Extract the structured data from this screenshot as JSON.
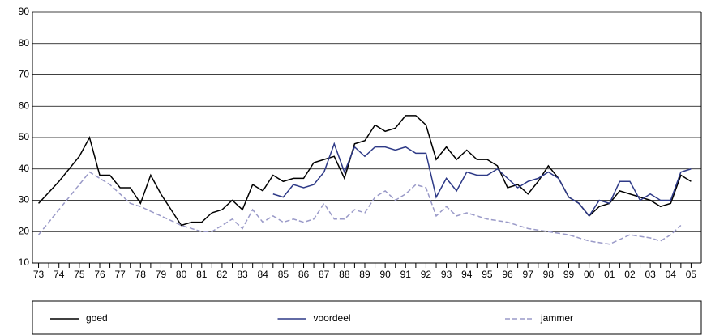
{
  "chart_data": {
    "type": "line",
    "xlim": [
      1972.7,
      2005.5
    ],
    "xticks": [
      {
        "value": 1973,
        "label": "73"
      },
      {
        "value": 1974,
        "label": "74"
      },
      {
        "value": 1975,
        "label": "75"
      },
      {
        "value": 1976,
        "label": "76"
      },
      {
        "value": 1977,
        "label": "77"
      },
      {
        "value": 1978,
        "label": "78"
      },
      {
        "value": 1979,
        "label": "79"
      },
      {
        "value": 1980,
        "label": "80"
      },
      {
        "value": 1981,
        "label": "81"
      },
      {
        "value": 1982,
        "label": "82"
      },
      {
        "value": 1983,
        "label": "83"
      },
      {
        "value": 1984,
        "label": "84"
      },
      {
        "value": 1985,
        "label": "85"
      },
      {
        "value": 1986,
        "label": "86"
      },
      {
        "value": 1987,
        "label": "87"
      },
      {
        "value": 1988,
        "label": "88"
      },
      {
        "value": 1989,
        "label": "89"
      },
      {
        "value": 1990,
        "label": "90"
      },
      {
        "value": 1991,
        "label": "91"
      },
      {
        "value": 1992,
        "label": "92"
      },
      {
        "value": 1993,
        "label": "93"
      },
      {
        "value": 1994,
        "label": "94"
      },
      {
        "value": 1995,
        "label": "95"
      },
      {
        "value": 1996,
        "label": "96"
      },
      {
        "value": 1997,
        "label": "97"
      },
      {
        "value": 1998,
        "label": "98"
      },
      {
        "value": 1999,
        "label": "99"
      },
      {
        "value": 2000,
        "label": "00"
      },
      {
        "value": 2001,
        "label": "01"
      },
      {
        "value": 2002,
        "label": "02"
      },
      {
        "value": 2003,
        "label": "03"
      },
      {
        "value": 2004,
        "label": "04"
      },
      {
        "value": 2005,
        "label": "05"
      }
    ],
    "ylim": [
      10,
      90
    ],
    "yticks": [
      10,
      20,
      30,
      40,
      50,
      60,
      70,
      80,
      90
    ],
    "grid": true,
    "legend": "bottom",
    "series": [
      {
        "name": "goed",
        "color": "#000000",
        "dashed": false,
        "x": [
          1973,
          1974,
          1975,
          1975.5,
          1976,
          1976.5,
          1977,
          1977.5,
          1978,
          1978.5,
          1979,
          1980,
          1980.5,
          1981,
          1981.5,
          1982,
          1982.5,
          1983,
          1983.5,
          1984,
          1984.5,
          1985,
          1985.5,
          1986,
          1986.5,
          1987,
          1987.5,
          1988,
          1988.5,
          1989,
          1989.5,
          1990,
          1990.5,
          1991,
          1991.5,
          1992,
          1992.5,
          1993,
          1993.5,
          1994,
          1994.5,
          1995,
          1995.5,
          1996,
          1996.5,
          1997,
          1997.5,
          1998,
          1998.5,
          1999,
          1999.5,
          2000,
          2000.5,
          2001,
          2001.5,
          2002,
          2002.5,
          2003,
          2003.5,
          2004,
          2004.5,
          2005
        ],
        "values": [
          29,
          36,
          44,
          50,
          38,
          38,
          34,
          34,
          29,
          38,
          32,
          22,
          23,
          23,
          26,
          27,
          30,
          27,
          35,
          33,
          38,
          36,
          37,
          37,
          42,
          43,
          44,
          37,
          48,
          49,
          54,
          52,
          53,
          57,
          57,
          54,
          43,
          47,
          43,
          46,
          43,
          43,
          41,
          34,
          35,
          32,
          36,
          41,
          37,
          31,
          29,
          25,
          28,
          29,
          33,
          32,
          31,
          30,
          28,
          29,
          38,
          36
        ]
      },
      {
        "name": "voordeel",
        "color": "#2e3a87",
        "dashed": false,
        "x": [
          1984.5,
          1985,
          1985.5,
          1986,
          1986.5,
          1987,
          1987.5,
          1988,
          1988.5,
          1989,
          1989.5,
          1990,
          1990.5,
          1991,
          1991.5,
          1992,
          1992.5,
          1993,
          1993.5,
          1994,
          1994.5,
          1995,
          1995.5,
          1996,
          1996.5,
          1997,
          1997.5,
          1998,
          1998.5,
          1999,
          1999.5,
          2000,
          2000.5,
          2001,
          2001.5,
          2002,
          2002.5,
          2003,
          2003.5,
          2004,
          2004.5,
          2005
        ],
        "values": [
          32,
          31,
          35,
          34,
          35,
          39,
          48,
          39,
          47,
          44,
          47,
          47,
          46,
          47,
          45,
          45,
          31,
          37,
          33,
          39,
          38,
          38,
          40,
          37,
          34,
          36,
          37,
          39,
          37,
          31,
          29,
          25,
          30,
          29,
          36,
          36,
          30,
          32,
          30,
          30,
          39,
          40
        ]
      },
      {
        "name": "jammer",
        "color": "#9a9ac8",
        "dashed": true,
        "x": [
          1973,
          1975.5,
          1976.5,
          1977.5,
          1978,
          1979,
          1980,
          1981,
          1981.5,
          1982,
          1982.5,
          1983,
          1983.5,
          1984,
          1984.5,
          1985,
          1985.5,
          1986,
          1986.5,
          1987,
          1987.5,
          1988,
          1988.5,
          1989,
          1989.5,
          1990,
          1990.5,
          1991,
          1991.5,
          1992,
          1992.5,
          1993,
          1993.5,
          1994,
          1995,
          1996,
          1997,
          1998,
          1999,
          2000,
          2001,
          2002,
          2003,
          2003.5,
          2004,
          2004.5
        ],
        "values": [
          19,
          39,
          35,
          29,
          28,
          25,
          22,
          20,
          20,
          22,
          24,
          21,
          27,
          23,
          25,
          23,
          24,
          23,
          24,
          29,
          24,
          24,
          27,
          26,
          31,
          33,
          30,
          32,
          35,
          34,
          25,
          28,
          25,
          26,
          24,
          23,
          21,
          20,
          19,
          17,
          16,
          19,
          18,
          17,
          19,
          22
        ]
      }
    ]
  }
}
